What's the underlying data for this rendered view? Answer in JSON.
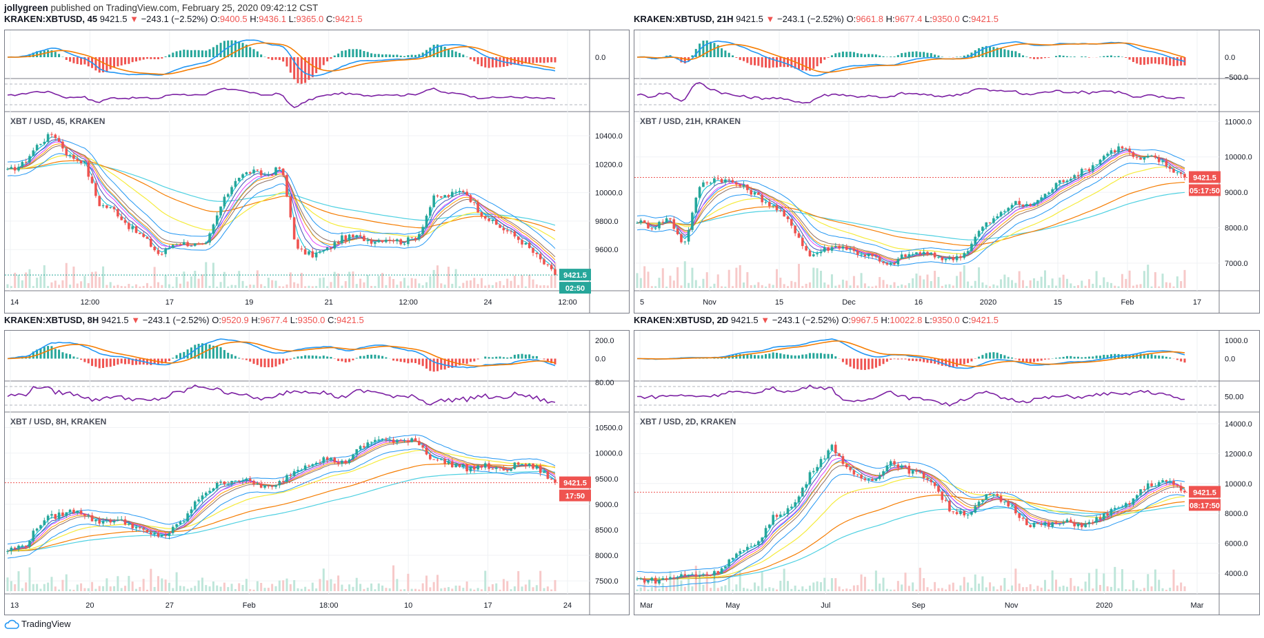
{
  "header": {
    "author": "jollygreen",
    "published_text": "published on TradingView.com, February 25, 2020 09:42:12 CST"
  },
  "footer": {
    "brand": "TradingView"
  },
  "colors": {
    "up": "#26a69a",
    "down": "#ef5350",
    "macd_line": "#2196f3",
    "signal_line": "#f57c00",
    "rsi": "#7b1fa2",
    "bb": "#2196f3",
    "ema_yellow": "#f5eb3a",
    "ema_orange": "#f57c00",
    "ema_cyan": "#4dd0e1",
    "ribbon": [
      "#00bcd4",
      "#3f51b5",
      "#e040fb",
      "#ff9800",
      "#8d6e63"
    ]
  },
  "panels": [
    {
      "id": "p45",
      "symbol": "KRAKEN:XBTUSD, 45",
      "price": "9421.5",
      "change": "−243.1 (−2.52%)",
      "o_label": "O:",
      "o": "9400.5",
      "h_label": "H:",
      "h": "9436.1",
      "l_label": "L:",
      "l": "9365.0",
      "c_label": "C:",
      "c": "9421.5",
      "chart_title": "XBT / USD, 45, KRAKEN",
      "price_badge": "9421.5",
      "timer_badge": "02:50",
      "badge_color": "#26a69a",
      "macd_ticks": [
        "0.0"
      ],
      "rsi_ticks": [],
      "price_ticks": [
        "10400.0",
        "10200.0",
        "10000.0",
        "9800.0",
        "9600.0"
      ],
      "x_ticks": [
        "14",
        "12:00",
        "17",
        "19",
        "21",
        "12:00",
        "24",
        "12:00"
      ],
      "chart_data": {
        "type": "candlestick",
        "title": "XBT / USD, 45, KRAKEN",
        "ylim": [
          9330,
          10550
        ],
        "x_labels": [
          "14",
          "12:00",
          "17",
          "19",
          "21",
          "12:00",
          "24",
          "12:00"
        ],
        "close_anchors": [
          10150,
          10200,
          10340,
          10420,
          10260,
          10220,
          9920,
          9880,
          9760,
          9680,
          9560,
          9650,
          9640,
          9620,
          9900,
          10100,
          10150,
          10120,
          10180,
          9600,
          9560,
          9600,
          9680,
          9690,
          9660,
          9680,
          9650,
          9700,
          9960,
          9980,
          10020,
          9870,
          9780,
          9720,
          9640,
          9530,
          9421.5
        ],
        "last": 9421.5
      }
    },
    {
      "id": "p21h",
      "symbol": "KRAKEN:XBTUSD, 21H",
      "price": "9421.5",
      "change": "−243.1 (−2.52%)",
      "o_label": "O:",
      "o": "9661.8",
      "h_label": "H:",
      "h": "9677.4",
      "l_label": "L:",
      "l": "9350.0",
      "c_label": "C:",
      "c": "9421.5",
      "chart_title": "XBT / USD, 21H, KRAKEN",
      "price_badge": "9421.5",
      "timer_badge": "05:17:50",
      "badge_color": "#ef5350",
      "macd_ticks": [
        "0.0",
        "−500.0"
      ],
      "rsi_ticks": [],
      "price_ticks": [
        "11000.0",
        "10000.0",
        "9000.0",
        "8000.0",
        "7000.0"
      ],
      "x_ticks": [
        "5",
        "Nov",
        "15",
        "Dec",
        "16",
        "2020",
        "15",
        "Feb",
        "17"
      ],
      "chart_data": {
        "type": "candlestick",
        "title": "XBT / USD, 21H, KRAKEN",
        "ylim": [
          6300,
          11200
        ],
        "x_labels": [
          "5",
          "Nov",
          "15",
          "Dec",
          "16",
          "2020",
          "15",
          "Feb",
          "17"
        ],
        "close_anchors": [
          8200,
          8000,
          8300,
          7500,
          9200,
          9400,
          9300,
          9100,
          8800,
          8500,
          8000,
          7200,
          7400,
          7500,
          7300,
          7200,
          6900,
          7200,
          7300,
          7200,
          7100,
          7300,
          8000,
          8300,
          8700,
          8600,
          8900,
          9300,
          9500,
          9700,
          10100,
          10300,
          9900,
          10000,
          9700,
          9421.5
        ],
        "last": 9421.5
      }
    },
    {
      "id": "p8h",
      "symbol": "KRAKEN:XBTUSD, 8H",
      "price": "9421.5",
      "change": "−243.1 (−2.52%)",
      "o_label": "O:",
      "o": "9520.9",
      "h_label": "H:",
      "h": "9677.4",
      "l_label": "L:",
      "l": "9350.0",
      "c_label": "C:",
      "c": "9421.5",
      "chart_title": "XBT / USD, 8H, KRAKEN",
      "price_badge": "9421.5",
      "timer_badge": "17:50",
      "badge_color": "#ef5350",
      "macd_ticks": [
        "200.0",
        "0.0"
      ],
      "rsi_ticks": [
        "80.00"
      ],
      "price_ticks": [
        "10500.0",
        "10000.0",
        "9500.0",
        "9000.0",
        "8500.0",
        "8000.0",
        "7500.0"
      ],
      "x_ticks": [
        "13",
        "20",
        "27",
        "Feb",
        "18:00",
        "10",
        "17",
        "24"
      ],
      "chart_data": {
        "type": "candlestick",
        "title": "XBT / USD, 8H, KRAKEN",
        "ylim": [
          7300,
          10750
        ],
        "x_labels": [
          "13",
          "20",
          "27",
          "Feb",
          "18:00",
          "10",
          "17",
          "24"
        ],
        "close_anchors": [
          8100,
          8200,
          8700,
          8800,
          8900,
          8650,
          8700,
          8600,
          8400,
          8400,
          8700,
          9200,
          9400,
          9500,
          9400,
          9300,
          9600,
          9800,
          9900,
          9800,
          10100,
          10300,
          10200,
          10300,
          9900,
          9800,
          9700,
          9750,
          9650,
          9800,
          9700,
          9421.5
        ],
        "last": 9421.5
      }
    },
    {
      "id": "p2d",
      "symbol": "KRAKEN:XBTUSD, 2D",
      "price": "9421.5",
      "change": "−243.1 (−2.52%)",
      "o_label": "O:",
      "o": "9967.5",
      "h_label": "H:",
      "h": "10022.8",
      "l_label": "L:",
      "l": "9350.0",
      "c_label": "C:",
      "c": "9421.5",
      "chart_title": "XBT / USD, 2D, KRAKEN",
      "price_badge": "9421.5",
      "timer_badge": "08:17:50",
      "badge_color": "#ef5350",
      "macd_ticks": [
        "1000.0",
        "0.0"
      ],
      "rsi_ticks": [
        "50.00"
      ],
      "price_ticks": [
        "14000.0",
        "12000.0",
        "10000.0",
        "8000.0",
        "6000.0",
        "4000.0"
      ],
      "x_ticks": [
        "Mar",
        "May",
        "Jul",
        "Sep",
        "Nov",
        "2020",
        "Mar"
      ],
      "chart_data": {
        "type": "candlestick",
        "title": "XBT / USD, 2D, KRAKEN",
        "ylim": [
          2800,
          14600
        ],
        "x_labels": [
          "Mar",
          "May",
          "Jul",
          "Sep",
          "Nov",
          "2020",
          "Mar"
        ],
        "close_anchors": [
          3600,
          3500,
          3800,
          3900,
          4000,
          5200,
          5800,
          7800,
          8500,
          11000,
          12500,
          10500,
          10200,
          11500,
          10800,
          10300,
          8200,
          8000,
          9300,
          8600,
          7300,
          7200,
          7400,
          7200,
          8000,
          8500,
          9800,
          10200,
          9421.5
        ],
        "last": 9421.5
      }
    }
  ]
}
